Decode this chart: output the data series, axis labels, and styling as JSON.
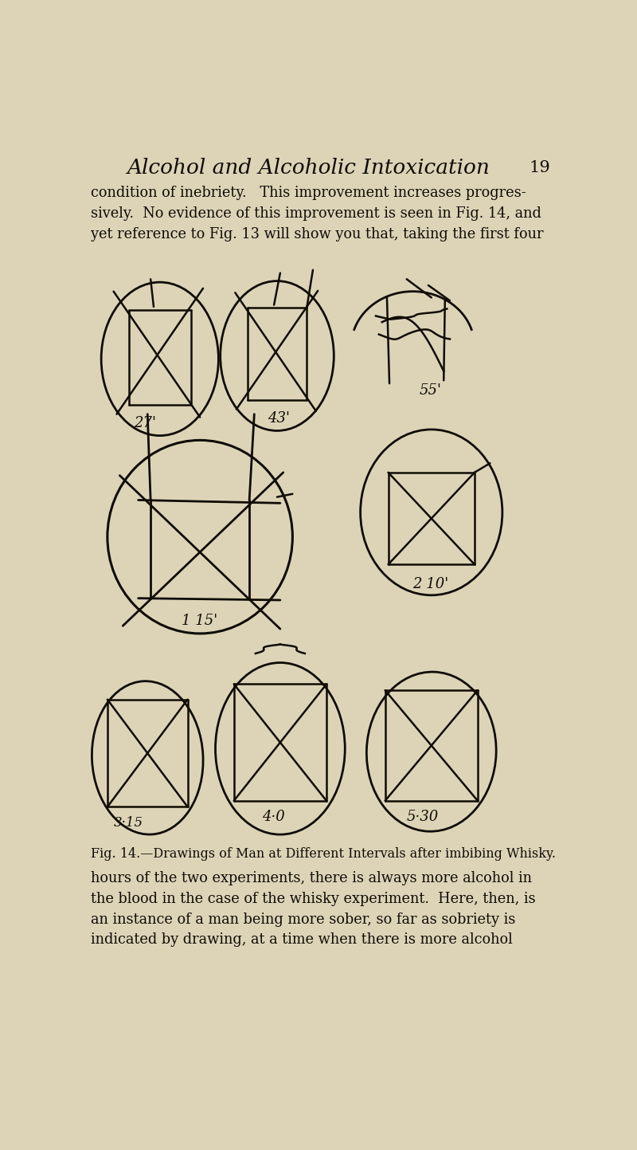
{
  "bg_color": "#ddd4b8",
  "title": "Alcohol and Alcoholic Intoxication",
  "page_number": "19",
  "title_fontsize": 19,
  "body_text_top": "condition of inebriety.   This improvement increases progres-\nsively.  No evidence of this improvement is seen in Fig. 14, and\nyet reference to Fig. 13 will show you that, taking the first four",
  "body_text_bottom": "hours of the two experiments, there is always more alcohol in\nthe blood in the case of the whisky experiment.  Here, then, is\nan instance of a man being more sober, so far as sobriety is\nindicated by drawing, at a time when there is more alcohol",
  "caption": "Fig. 14.—Drawings of Man at Different Intervals after imbibing Whisky.",
  "ink_color": "#100c04",
  "text_color": "#100c04"
}
